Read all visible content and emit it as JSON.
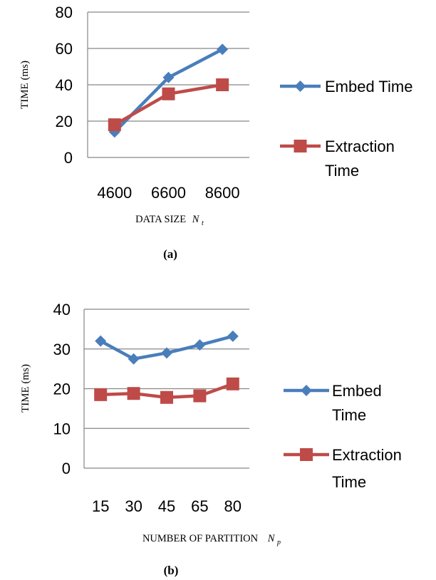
{
  "chart_data": [
    {
      "type": "line",
      "caption": "(a)",
      "categories": [
        "4600",
        "6600",
        "8600"
      ],
      "ylabel": "TIME  (ms)",
      "xlabel": "DATA SIZE",
      "xlabel_symbol": "N",
      "xlabel_subscript": "t",
      "ylim": [
        0,
        80
      ],
      "yticks": [
        0,
        20,
        40,
        60,
        80
      ],
      "grid": true,
      "legend_position": "right",
      "series": [
        {
          "name": "Embed Time",
          "legend_lines": [
            "Embed Time"
          ],
          "color": "#4A7EBB",
          "marker": "diamond",
          "values": [
            14,
            44,
            59.5
          ]
        },
        {
          "name": "Extraction Time",
          "legend_lines": [
            "Extraction",
            "Time"
          ],
          "color": "#BE4B48",
          "marker": "square",
          "values": [
            18,
            35,
            40
          ]
        }
      ]
    },
    {
      "type": "line",
      "caption": "(b)",
      "categories": [
        "15",
        "30",
        "45",
        "65",
        "80"
      ],
      "ylabel": "TIME (ms)",
      "xlabel": "NUMBER OF PARTITION",
      "xlabel_symbol": "N",
      "xlabel_subscript": "p",
      "ylim": [
        0,
        40
      ],
      "yticks": [
        0,
        10,
        20,
        30,
        40
      ],
      "grid": true,
      "legend_position": "right",
      "series": [
        {
          "name": "Embed Time",
          "legend_lines": [
            "Embed",
            "Time"
          ],
          "color": "#4A7EBB",
          "marker": "diamond",
          "values": [
            32,
            27.5,
            29,
            31,
            33.2
          ]
        },
        {
          "name": "Extraction Time",
          "legend_lines": [
            "Extraction",
            "Time"
          ],
          "color": "#BE4B48",
          "marker": "square",
          "values": [
            18.5,
            18.8,
            17.8,
            18.2,
            21.2
          ]
        }
      ]
    }
  ]
}
